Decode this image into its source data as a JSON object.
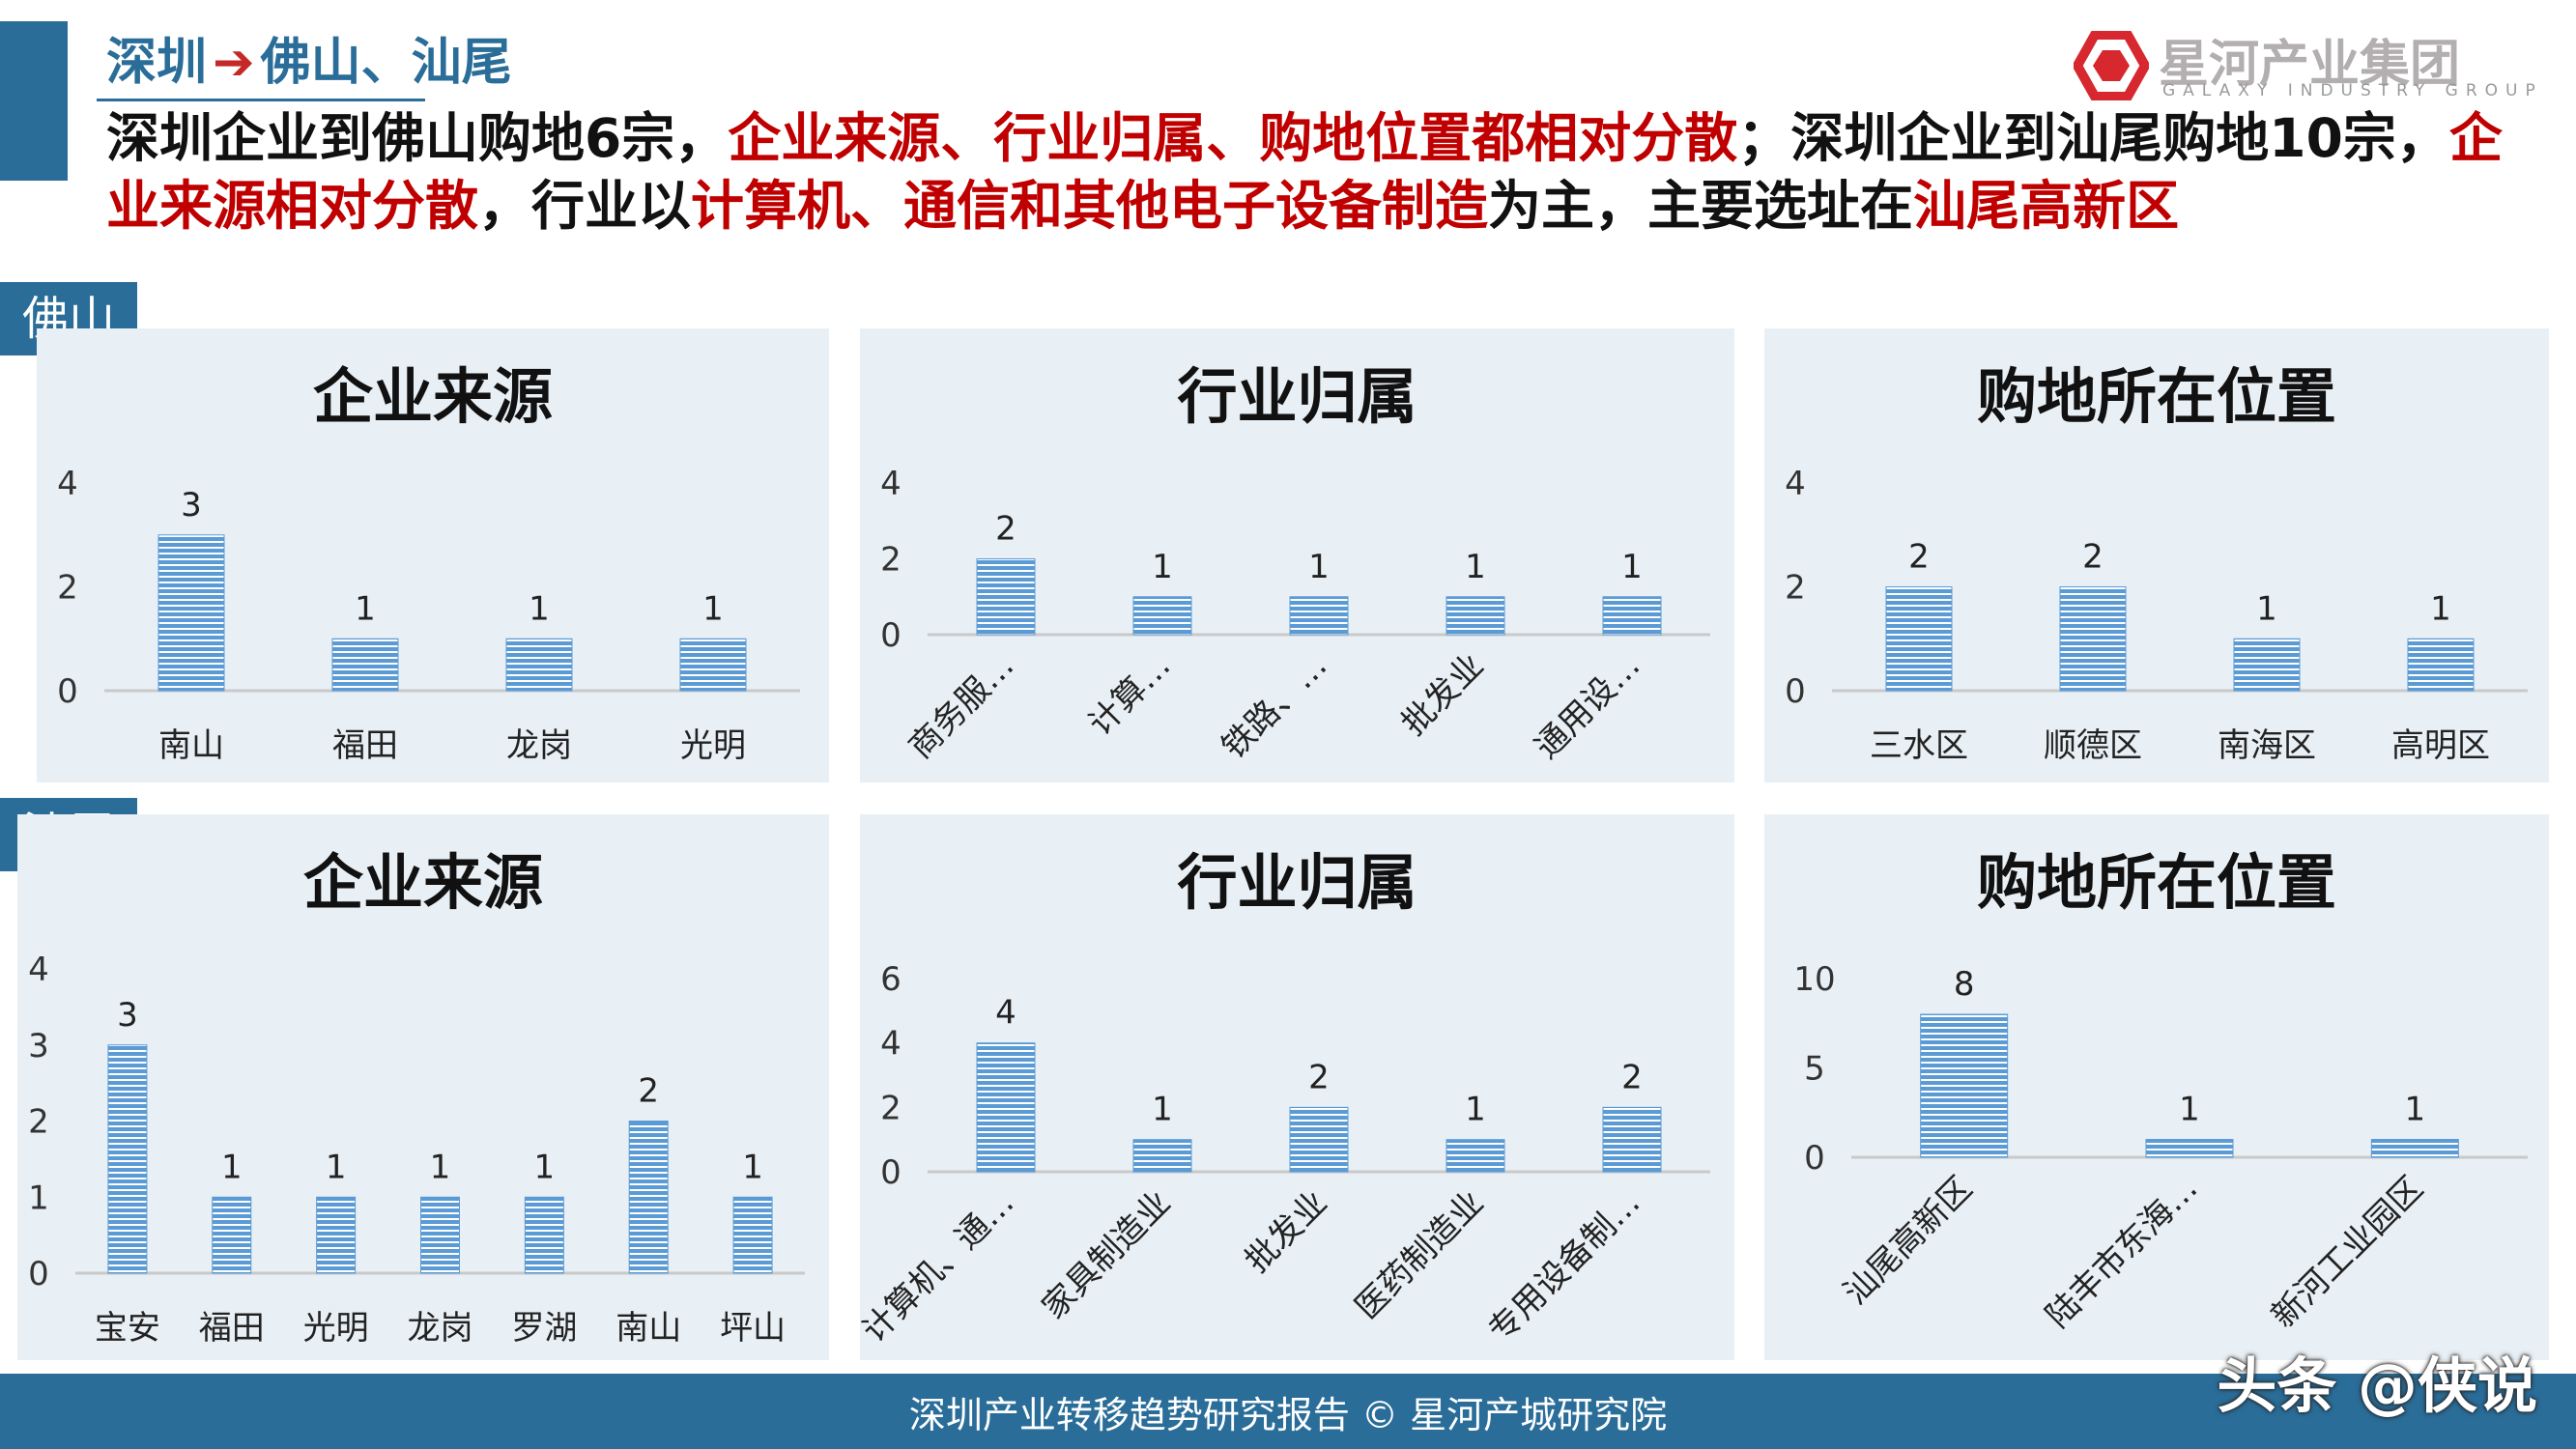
{
  "header": {
    "breadcrumb_from": "深圳",
    "breadcrumb_arrow": "➔",
    "breadcrumb_to": "佛山、汕尾",
    "logo_cn": "星河产业集团",
    "logo_en": "GALAXY INDUSTRY GROUP",
    "headline": {
      "p1": "深圳企业到佛山购地6宗，",
      "p2": "企业来源、行业归属、购地位置都相对分散",
      "p3": "；深圳企业到汕尾购地10宗，",
      "p4": "企业来源相对分散",
      "p5": "，行业以",
      "p6": "计算机、通信和其他电子设备制造",
      "p7": "为主，主要选址在",
      "p8": "汕尾高新区"
    }
  },
  "regions": {
    "foshan": "佛山",
    "shanwei": "汕尾"
  },
  "colors": {
    "bar": "#5b9bd5",
    "accent": "#2a6d99",
    "highlight": "#c00000",
    "panel_bg": "#e9f0f5"
  },
  "chart_data": [
    {
      "region": "佛山",
      "type": "bar",
      "title": "企业来源",
      "categories": [
        "南山",
        "福田",
        "龙岗",
        "光明"
      ],
      "values": [
        3,
        1,
        1,
        1
      ],
      "ylim": [
        0,
        4
      ],
      "yticks": [
        0,
        2,
        4
      ],
      "rotate_labels": false
    },
    {
      "region": "佛山",
      "type": "bar",
      "title": "行业归属",
      "categories": [
        "商务服…",
        "计算…",
        "铁路、…",
        "批发业",
        "通用设…"
      ],
      "values": [
        2,
        1,
        1,
        1,
        1
      ],
      "ylim": [
        0,
        4
      ],
      "yticks": [
        0,
        2,
        4
      ],
      "rotate_labels": true
    },
    {
      "region": "佛山",
      "type": "bar",
      "title": "购地所在位置",
      "categories": [
        "三水区",
        "顺德区",
        "南海区",
        "高明区"
      ],
      "values": [
        2,
        2,
        1,
        1
      ],
      "ylim": [
        0,
        4
      ],
      "yticks": [
        0,
        2,
        4
      ],
      "rotate_labels": false
    },
    {
      "region": "汕尾",
      "type": "bar",
      "title": "企业来源",
      "categories": [
        "宝安",
        "福田",
        "光明",
        "龙岗",
        "罗湖",
        "南山",
        "坪山"
      ],
      "values": [
        3,
        1,
        1,
        1,
        1,
        2,
        1
      ],
      "ylim": [
        0,
        4
      ],
      "yticks": [
        0,
        1,
        2,
        3,
        4
      ],
      "rotate_labels": false
    },
    {
      "region": "汕尾",
      "type": "bar",
      "title": "行业归属",
      "categories": [
        "计算机、通…",
        "家具制造业",
        "批发业",
        "医药制造业",
        "专用设备制…"
      ],
      "values": [
        4,
        1,
        2,
        1,
        2
      ],
      "ylim": [
        0,
        6
      ],
      "yticks": [
        0,
        2,
        4,
        6
      ],
      "rotate_labels": true
    },
    {
      "region": "汕尾",
      "type": "bar",
      "title": "购地所在位置",
      "categories": [
        "汕尾高新区",
        "陆丰市东海…",
        "新河工业园区"
      ],
      "values": [
        8,
        1,
        1
      ],
      "ylim": [
        0,
        10
      ],
      "yticks": [
        0,
        5,
        10
      ],
      "rotate_labels": true
    }
  ],
  "footer": {
    "text": "深圳产业转移趋势研究报告 © 星河产城研究院",
    "signature": "头条 @侠说"
  }
}
